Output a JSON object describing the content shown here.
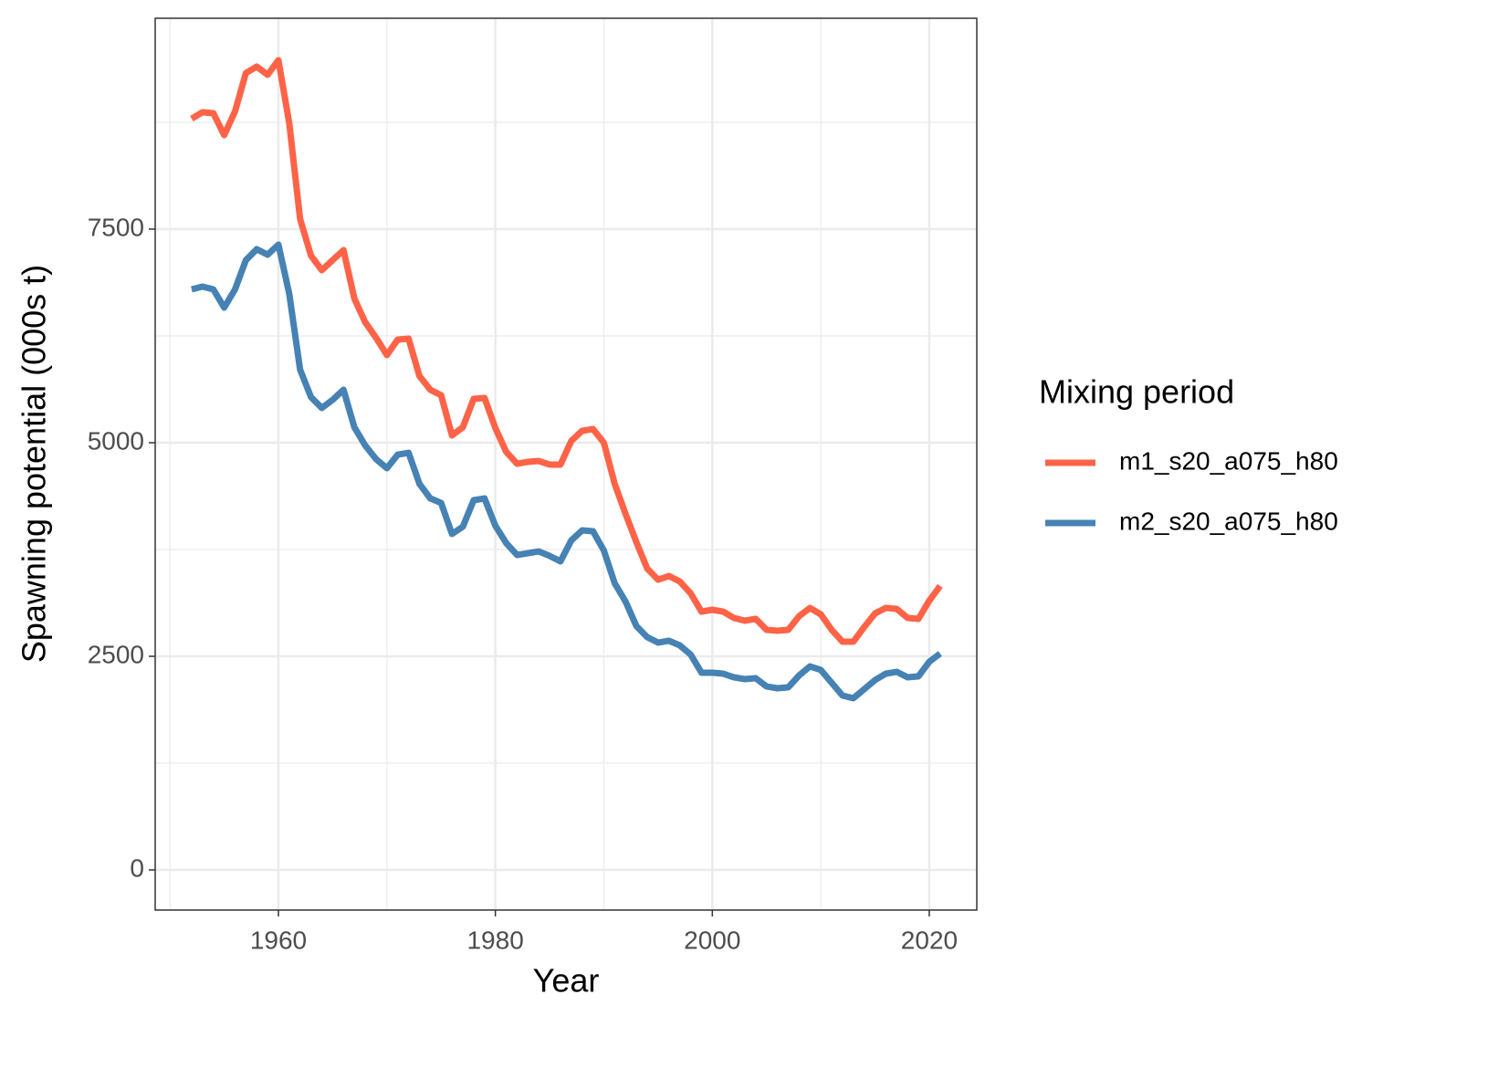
{
  "chart_data": {
    "type": "line",
    "x_label": "Year",
    "y_label": "Spawning potential (000s t)",
    "legend_title": "Mixing period",
    "legend_position": "right",
    "grid": true,
    "xlim": [
      1948.64,
      2024.38
    ],
    "xticks": [
      1960,
      1980,
      2000,
      2020
    ],
    "xminor": [
      1950,
      1970,
      1990,
      2010
    ],
    "ylim": [
      -470,
      9968
    ],
    "yticks": [
      0,
      2500,
      5000,
      7500
    ],
    "yminor": [
      1250,
      3750,
      6250,
      8750
    ],
    "x": [
      1952,
      1953,
      1954,
      1955,
      1956,
      1957,
      1958,
      1959,
      1960,
      1961,
      1962,
      1963,
      1964,
      1965,
      1966,
      1967,
      1968,
      1969,
      1970,
      1971,
      1972,
      1973,
      1974,
      1975,
      1976,
      1977,
      1978,
      1979,
      1980,
      1981,
      1982,
      1983,
      1984,
      1985,
      1986,
      1987,
      1988,
      1989,
      1990,
      1991,
      1992,
      1993,
      1994,
      1995,
      1996,
      1997,
      1998,
      1999,
      2000,
      2001,
      2002,
      2003,
      2004,
      2005,
      2006,
      2007,
      2008,
      2009,
      2010,
      2011,
      2012,
      2013,
      2014,
      2015,
      2016,
      2017,
      2018,
      2019,
      2020,
      2021
    ],
    "series": [
      {
        "name": "m1_s20_a075_h80",
        "color": "#ff6347",
        "values": [
          8793,
          8868,
          8857,
          8600,
          8878,
          9327,
          9402,
          9306,
          9477,
          8739,
          7618,
          7190,
          7019,
          7137,
          7254,
          6688,
          6410,
          6229,
          6026,
          6207,
          6218,
          5780,
          5620,
          5556,
          5085,
          5181,
          5513,
          5524,
          5171,
          4893,
          4754,
          4776,
          4786,
          4744,
          4744,
          5021,
          5139,
          5160,
          5000,
          4519,
          4167,
          3835,
          3526,
          3397,
          3440,
          3376,
          3237,
          3023,
          3045,
          3023,
          2949,
          2917,
          2938,
          2810,
          2799,
          2810,
          2970,
          3066,
          2991,
          2810,
          2671,
          2671,
          2842,
          3002,
          3066,
          3055,
          2949,
          2938,
          3151,
          3323
        ]
      },
      {
        "name": "m2_s20_a075_h80",
        "color": "#4682b4",
        "values": [
          6795,
          6827,
          6795,
          6581,
          6795,
          7137,
          7265,
          7201,
          7318,
          6741,
          5855,
          5534,
          5406,
          5502,
          5620,
          5181,
          4968,
          4808,
          4701,
          4861,
          4882,
          4519,
          4348,
          4295,
          3932,
          4017,
          4327,
          4348,
          4028,
          3825,
          3686,
          3707,
          3728,
          3675,
          3611,
          3857,
          3974,
          3964,
          3739,
          3355,
          3141,
          2853,
          2724,
          2660,
          2682,
          2628,
          2521,
          2308,
          2308,
          2297,
          2254,
          2233,
          2244,
          2147,
          2126,
          2137,
          2276,
          2382,
          2340,
          2190,
          2041,
          2009,
          2115,
          2222,
          2297,
          2318,
          2254,
          2265,
          2436,
          2532
        ]
      }
    ]
  }
}
